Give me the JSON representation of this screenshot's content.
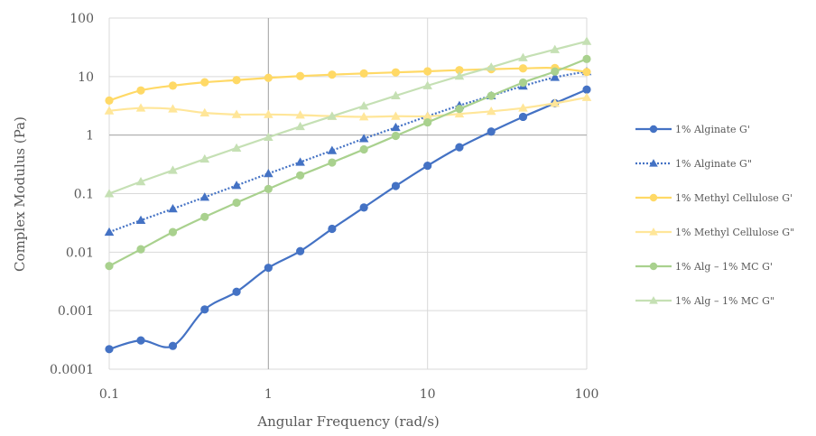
{
  "chart_data": {
    "type": "line",
    "title": "",
    "xlabel": "Angular Frequency (rad/s)",
    "ylabel": "Complex Modulus (Pa)",
    "x_scale": "log",
    "y_scale": "log",
    "xlim": [
      0.1,
      100
    ],
    "ylim": [
      0.0001,
      100
    ],
    "x_ticks": [
      0.1,
      1,
      10,
      100
    ],
    "x_tick_labels": [
      "0.1",
      "1",
      "10",
      "100"
    ],
    "y_ticks": [
      100,
      10,
      1,
      0.1,
      0.01,
      0.001,
      0.0001
    ],
    "y_tick_labels": [
      "100",
      "10",
      "1",
      "0.1",
      "0.01",
      "0.001",
      "0.0001"
    ],
    "grid": true,
    "legend_position": "right",
    "x": [
      0.1,
      0.158,
      0.251,
      0.398,
      0.631,
      1,
      1.585,
      2.512,
      3.981,
      6.31,
      10,
      15.85,
      25.12,
      39.81,
      63.1,
      100
    ],
    "series": [
      {
        "name": "1% Alginate G'",
        "color": "#4472C4",
        "marker": "circle",
        "line_style": "solid",
        "values": [
          0.00022,
          0.00031,
          0.00025,
          0.00105,
          0.0021,
          0.0054,
          0.0104,
          0.025,
          0.058,
          0.135,
          0.3,
          0.62,
          1.15,
          2.05,
          3.5,
          6.0
        ]
      },
      {
        "name": "1% Alginate G\"",
        "color": "#4472C4",
        "marker": "triangle",
        "line_style": "dotted",
        "values": [
          0.022,
          0.035,
          0.055,
          0.087,
          0.138,
          0.22,
          0.345,
          0.545,
          0.87,
          1.35,
          2.1,
          3.2,
          4.7,
          6.9,
          9.7,
          12.2
        ]
      },
      {
        "name": "1% Methyl Cellulose G'",
        "color": "#FFD966",
        "marker": "circle",
        "line_style": "solid",
        "values": [
          3.9,
          5.8,
          7.0,
          8.0,
          8.7,
          9.5,
          10.2,
          10.8,
          11.3,
          11.8,
          12.3,
          12.9,
          13.4,
          13.8,
          14.0,
          12.0
        ]
      },
      {
        "name": "1% Methyl Cellulose G\"",
        "color": "#FFE699",
        "marker": "triangle",
        "line_style": "solid",
        "values": [
          2.6,
          2.9,
          2.8,
          2.4,
          2.25,
          2.25,
          2.2,
          2.1,
          2.05,
          2.1,
          2.1,
          2.3,
          2.55,
          2.9,
          3.5,
          4.4
        ]
      },
      {
        "name": "1% Alg – 1% MC G'",
        "color": "#A9D18E",
        "marker": "circle",
        "line_style": "solid",
        "values": [
          0.0058,
          0.0112,
          0.022,
          0.04,
          0.07,
          0.12,
          0.205,
          0.34,
          0.57,
          0.97,
          1.65,
          2.8,
          4.7,
          7.9,
          12.2,
          20.0
        ]
      },
      {
        "name": "1% Alg – 1% MC G\"",
        "color": "#C5E0B4",
        "marker": "triangle",
        "line_style": "solid",
        "values": [
          0.1,
          0.16,
          0.25,
          0.39,
          0.6,
          0.92,
          1.4,
          2.1,
          3.15,
          4.7,
          7.0,
          10.2,
          14.5,
          21.0,
          29.0,
          40.0
        ]
      }
    ]
  }
}
